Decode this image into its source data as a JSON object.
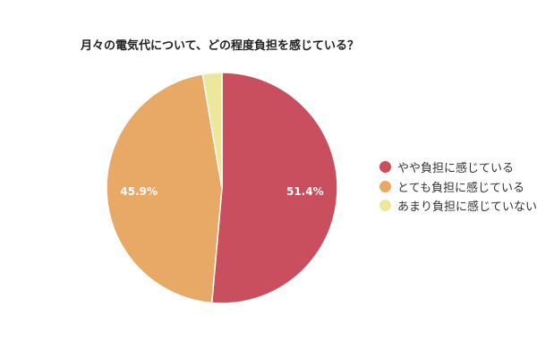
{
  "chart_data": {
    "type": "pie",
    "title": "月々の電気代について、どの程度負担を感じている？",
    "categories": [
      "やや負担に感じている",
      "とても負担に感じている",
      "あまり負担に感じていない"
    ],
    "values": [
      51.4,
      45.9,
      2.7
    ],
    "labels": [
      "51.4%",
      "45.9%",
      ""
    ],
    "colors": [
      "#c94f5f",
      "#e8a866",
      "#ece79a"
    ],
    "start_angle": "top, clockwise",
    "legend_position": "right"
  }
}
